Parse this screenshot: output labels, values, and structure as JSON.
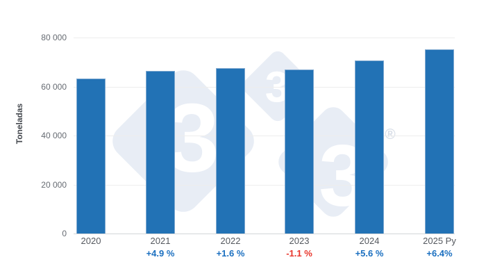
{
  "chart_data": {
    "type": "bar",
    "categories": [
      "2020",
      "2021",
      "2022",
      "2023",
      "2024",
      "2025 Py"
    ],
    "values": [
      63400,
      66500,
      67600,
      66850,
      70600,
      75100
    ],
    "growth_labels": [
      "",
      "+4.9 %",
      "+1.6 %",
      "-1.1 %",
      "+5.6 %",
      "+6.4%"
    ],
    "title": "",
    "xlabel": "",
    "ylabel": "Toneladas",
    "ylim": [
      0,
      80000
    ],
    "yticks": [
      {
        "label": "80 000",
        "value": 80000
      },
      {
        "label": "60 000",
        "value": 60000
      },
      {
        "label": "40 000",
        "value": 40000
      },
      {
        "label": "20 000",
        "value": 20000
      },
      {
        "label": "0",
        "value": 0
      }
    ],
    "grid": true,
    "legend": "none"
  },
  "colors": {
    "bar": "#2272b5",
    "bar_border": "#81aad1",
    "grid": "#ededed",
    "baseline": "#d2d6d9",
    "tick_text": "#666b72",
    "year_text": "#54585e",
    "axis_title": "#45494f",
    "positive": "#1a6fc0",
    "negative": "#e8362c",
    "watermark": "#e8edf5",
    "watermark_digit": "#ffffff",
    "registered": "#d9dfe8"
  },
  "watermark": {
    "digit": "3",
    "registered": "®"
  }
}
